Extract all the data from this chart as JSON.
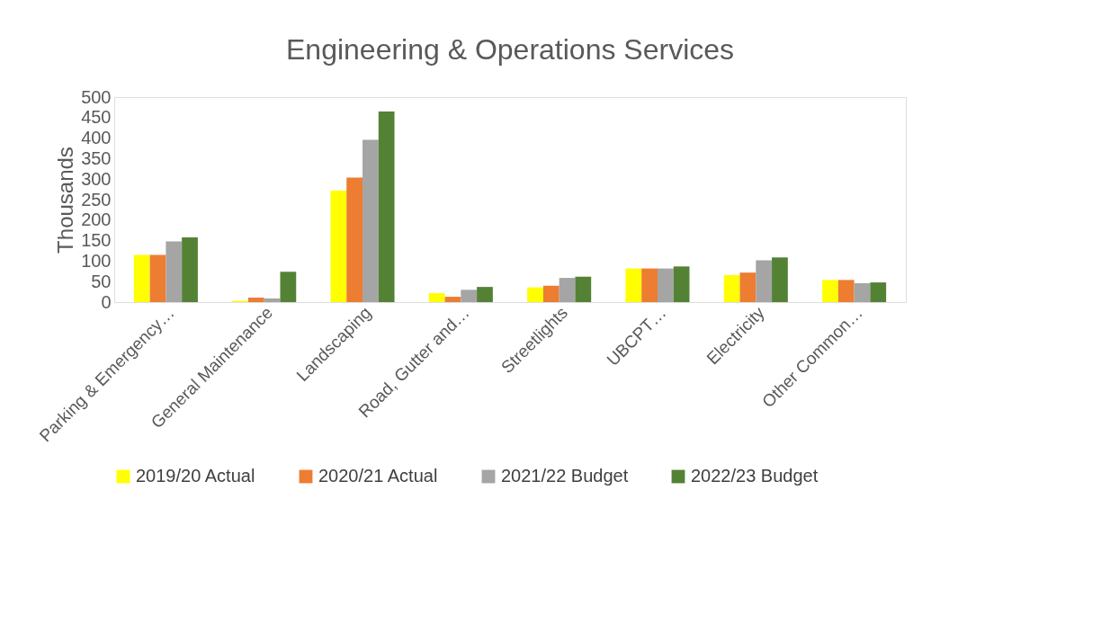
{
  "chart_data": {
    "type": "bar",
    "title": "Engineering & Operations Services",
    "ylabel": "Thousands",
    "categories": [
      "Parking & Emergency…",
      "General Maintenance",
      "Landscaping",
      "Road, Gutter and…",
      "Streetlights",
      "UBCPT…",
      "Electricity",
      "Other Common…"
    ],
    "series": [
      {
        "name": "2019/20 Actual",
        "color": "#ffff00",
        "values": [
          115,
          3,
          272,
          22,
          36,
          82,
          66,
          54
        ]
      },
      {
        "name": "2020/21 Actual",
        "color": "#ed7d31",
        "values": [
          115,
          11,
          304,
          13,
          40,
          82,
          72,
          54
        ]
      },
      {
        "name": "2021/22 Budget",
        "color": "#a5a5a5",
        "values": [
          148,
          9,
          396,
          30,
          59,
          82,
          102,
          46
        ]
      },
      {
        "name": "2022/23 Budget",
        "color": "#548235",
        "values": [
          158,
          74,
          465,
          37,
          62,
          87,
          109,
          48
        ]
      }
    ],
    "ylim": [
      0,
      500
    ],
    "yticks": [
      0,
      50,
      100,
      150,
      200,
      250,
      300,
      350,
      400,
      450,
      500
    ],
    "grid": false,
    "legend": "bottom"
  }
}
